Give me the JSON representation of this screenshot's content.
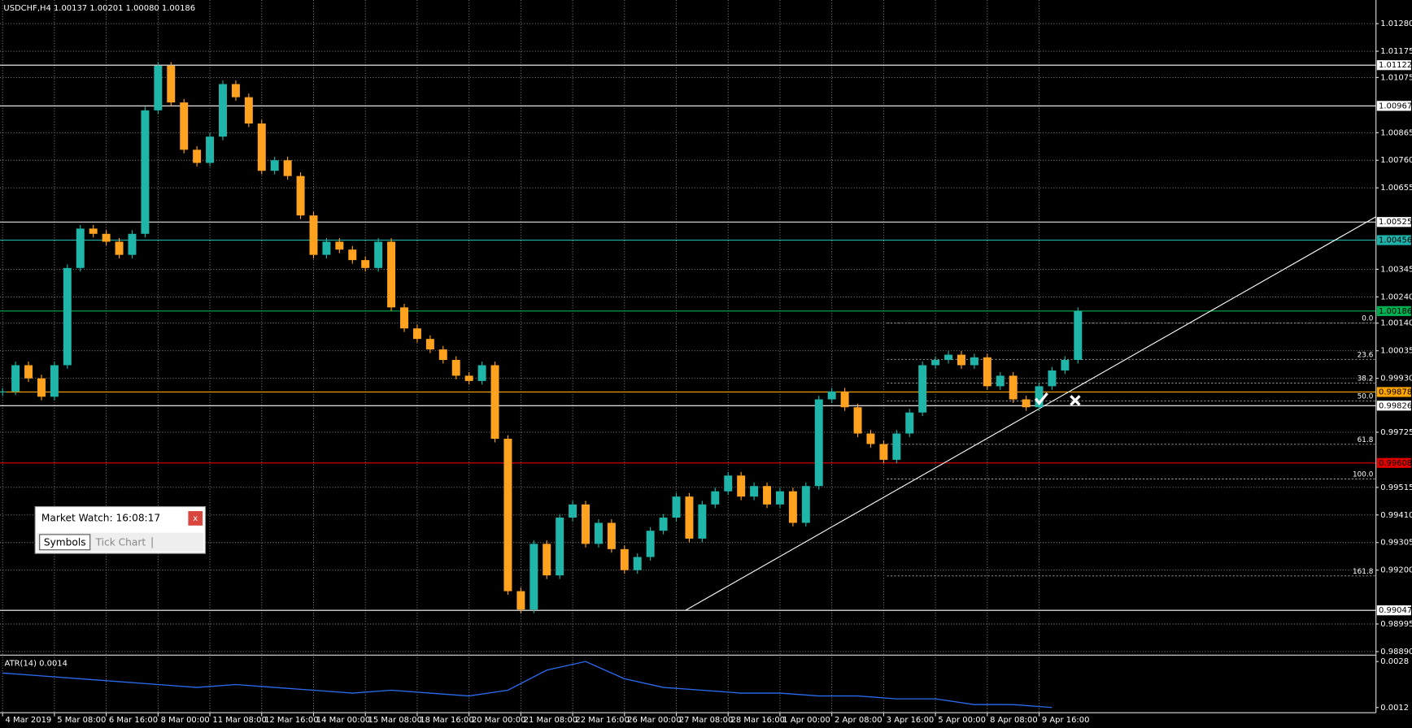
{
  "header": {
    "title": "USDCHF,H4  1.00137 1.00201 1.00080 1.00186"
  },
  "chart_data": {
    "type": "candlestick",
    "up_color": "#1fb5a8",
    "down_color": "#ffa21f",
    "grid": true,
    "values": [
      0.9988,
      0.9998,
      0.9993,
      0.9986,
      0.9998,
      1.0035,
      1.005,
      1.0048,
      1.0045,
      1.004,
      1.0048,
      1.0095,
      1.0112,
      1.0098,
      1.008,
      1.0075,
      1.0085,
      1.0105,
      1.01,
      1.009,
      1.0072,
      1.0076,
      1.007,
      1.0055,
      1.004,
      1.0045,
      1.0042,
      1.0038,
      1.0035,
      1.0045,
      1.002,
      1.0012,
      1.0008,
      1.0004,
      1.0,
      0.9994,
      0.9992,
      0.9998,
      0.997,
      0.9912,
      0.9905,
      0.993,
      0.9918,
      0.994,
      0.9945,
      0.993,
      0.9938,
      0.9928,
      0.992,
      0.9925,
      0.9935,
      0.994,
      0.9948,
      0.9932,
      0.9945,
      0.995,
      0.9956,
      0.9948,
      0.9952,
      0.9945,
      0.995,
      0.9938,
      0.9952,
      0.9985,
      0.9988,
      0.9982,
      0.9972,
      0.9968,
      0.9962,
      0.9972,
      0.998,
      0.9998,
      1.0,
      1.0002,
      0.9998,
      1.0001,
      0.999,
      0.9994,
      0.9985,
      0.9982,
      0.999,
      0.9996,
      1.0,
      1.00186
    ],
    "xlim": [
      -0.2,
      106
    ],
    "xticks": [
      {
        "value": 0,
        "label": "4 Mar 2019"
      },
      {
        "value": 4,
        "label": "5 Mar 08:00"
      },
      {
        "value": 8,
        "label": "6 Mar 16:00"
      },
      {
        "value": 12,
        "label": "8 Mar 00:00"
      },
      {
        "value": 16,
        "label": "11 Mar 08:00"
      },
      {
        "value": 20,
        "label": "12 Mar 16:00"
      },
      {
        "value": 24,
        "label": "14 Mar 00:00"
      },
      {
        "value": 28,
        "label": "15 Mar 08:00"
      },
      {
        "value": 32,
        "label": "18 Mar 16:00"
      },
      {
        "value": 36,
        "label": "20 Mar 00:00"
      },
      {
        "value": 40,
        "label": "21 Mar 08:00"
      },
      {
        "value": 44,
        "label": "22 Mar 16:00"
      },
      {
        "value": 48,
        "label": "26 Mar 00:00"
      },
      {
        "value": 52,
        "label": "27 Mar 08:00"
      },
      {
        "value": 56,
        "label": "28 Mar 16:00"
      },
      {
        "value": 60,
        "label": "1 Apr 00:00"
      },
      {
        "value": 64,
        "label": "2 Apr 08:00"
      },
      {
        "value": 68,
        "label": "3 Apr 16:00"
      },
      {
        "value": 72,
        "label": "5 Apr 00:00"
      },
      {
        "value": 76,
        "label": "8 Apr 08:00"
      },
      {
        "value": 80,
        "label": "9 Apr 16:00"
      }
    ],
    "ylim": [
      0.9888,
      1.0137
    ],
    "yticks": [
      {
        "value": 1.0128,
        "label": "1.01280"
      },
      1.01175,
      1.01075,
      1.00865,
      {
        "value": 1.0076,
        "label": "1.00760"
      },
      1.00655,
      1.00345,
      {
        "value": 1.0024,
        "label": "1.00240"
      },
      {
        "value": 1.0014,
        "label": "1.00140"
      },
      1.00035,
      {
        "value": 0.9993,
        "label": "0.99930"
      },
      0.99725,
      0.99515,
      {
        "value": 0.9941,
        "label": "0.99410"
      },
      0.99305,
      {
        "value": 0.992,
        "label": "0.99200"
      },
      0.98995,
      {
        "value": 0.9889,
        "label": "0.98890"
      }
    ],
    "levels": [
      {
        "value": 1.01122,
        "color": "#ffffff"
      },
      {
        "value": 1.00967,
        "color": "#ffffff"
      },
      {
        "value": 1.00525,
        "color": "#ffffff"
      },
      {
        "value": 1.00456,
        "color": "#20b2aa"
      },
      {
        "value": 1.00186,
        "color": "#00b050"
      },
      {
        "value": 0.99878,
        "color": "#ffa500"
      },
      {
        "value": 0.99826,
        "color": "#ffffff"
      },
      {
        "value": 0.99608,
        "color": "#e00000"
      },
      {
        "value": 0.99047,
        "color": "#ffffff"
      }
    ],
    "fib": [
      {
        "value": 0,
        "label": "0.0",
        "price": 1.0014
      },
      {
        "value": 23.6,
        "price": 1.00002
      },
      {
        "value": 38.2,
        "price": 0.99912
      },
      {
        "value": 50,
        "label": "50.0",
        "price": 0.99844
      },
      {
        "value": 61.8,
        "price": 0.99679
      },
      {
        "value": 100,
        "label": "100.0",
        "price": 0.99547
      },
      {
        "value": 161.8,
        "price": 0.99178
      }
    ],
    "trendline": {
      "x": [
        52.7,
        106
      ],
      "y": [
        0.99047,
        1.00545
      ],
      "color": "#ffffff"
    },
    "indicator": {
      "name": "ATR(14) 0.0014",
      "color": "#2a6cf0",
      "x": [
        0,
        3,
        6,
        9,
        12,
        15,
        18,
        21,
        24,
        27,
        30,
        33,
        36,
        39,
        42,
        45,
        48,
        51,
        54,
        57,
        60,
        63,
        66,
        69,
        72,
        75,
        78,
        81
      ],
      "values": [
        0.0024,
        0.0023,
        0.0022,
        0.0021,
        0.002,
        0.0019,
        0.002,
        0.0019,
        0.0018,
        0.0017,
        0.0018,
        0.0017,
        0.0016,
        0.0018,
        0.0025,
        0.0028,
        0.0022,
        0.0019,
        0.0018,
        0.0017,
        0.0017,
        0.0016,
        0.0016,
        0.0015,
        0.0015,
        0.0013,
        0.0013,
        0.0012
      ],
      "ylim": [
        0.00105,
        0.00296
      ],
      "yticks": [
        0.0028,
        0.0012
      ]
    }
  },
  "market_watch": {
    "title": "Market Watch: 16:08:17",
    "close": "x",
    "tabs": [
      "Symbols",
      "Tick Chart"
    ]
  }
}
